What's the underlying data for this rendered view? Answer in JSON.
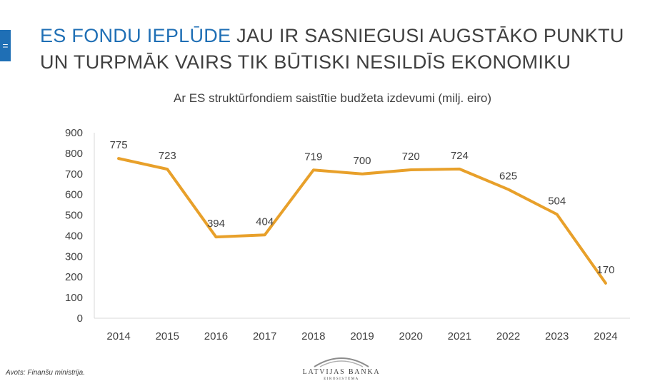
{
  "header": {
    "menu_glyph": "=",
    "title_highlight": "ES FONDU IEPLŪDE",
    "title_rest": " JAU IR SASNIEGUSI AUGSTĀKO PUNKTU UN TURPMĀK VAIRS TIK BŪTISKI NESILDĪS EKONOMIKU"
  },
  "footer": {
    "source": "Avots: Finanšu ministrija.",
    "logo_name": "LATVIJAS BANKA",
    "logo_sub": "EIROSISTĒMA"
  },
  "colors": {
    "accent": "#1f6fb5",
    "line": "#e8a02a",
    "text": "#404040",
    "axis": "#d9d9d9"
  },
  "chart_data": {
    "type": "line",
    "title": "Ar ES struktūrfondiem saistītie budžeta izdevumi (milj. eiro)",
    "categories": [
      "2014",
      "2015",
      "2016",
      "2017",
      "2018",
      "2019",
      "2020",
      "2021",
      "2022",
      "2023",
      "2024"
    ],
    "values": [
      775,
      723,
      394,
      404,
      719,
      700,
      720,
      724,
      625,
      504,
      170
    ],
    "ylim": [
      0,
      900
    ],
    "yticks": [
      0,
      100,
      200,
      300,
      400,
      500,
      600,
      700,
      800,
      900
    ],
    "grid": false,
    "legend": "none",
    "data_labels": true
  }
}
